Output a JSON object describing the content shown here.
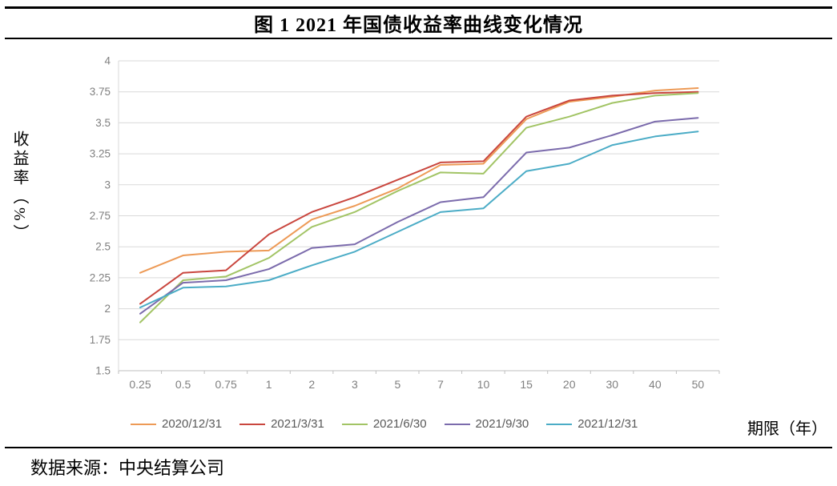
{
  "title": "图 1 2021 年国债收益率曲线变化情况",
  "source_note": "数据来源：中央结算公司",
  "chart_data": {
    "type": "line",
    "title": "图 1 2021 年国债收益率曲线变化情况",
    "xlabel": "期限（年）",
    "ylabel": "收益率（%）",
    "ylim": [
      1.5,
      4
    ],
    "ytick_step": 0.25,
    "yticks": [
      "1.5",
      "1.75",
      "2",
      "2.25",
      "2.5",
      "2.75",
      "3",
      "3.25",
      "3.5",
      "3.75",
      "4"
    ],
    "grid": true,
    "legend_position": "bottom",
    "categories": [
      "0.25",
      "0.5",
      "0.75",
      "1",
      "2",
      "3",
      "5",
      "7",
      "10",
      "15",
      "20",
      "30",
      "40",
      "50"
    ],
    "series": [
      {
        "name": "2020/12/31",
        "color": "#ED9A56",
        "values": [
          2.29,
          2.43,
          2.46,
          2.47,
          2.72,
          2.83,
          2.97,
          3.16,
          3.17,
          3.53,
          3.67,
          3.71,
          3.76,
          3.78
        ]
      },
      {
        "name": "2021/3/31",
        "color": "#C9463E",
        "values": [
          2.04,
          2.29,
          2.31,
          2.6,
          2.78,
          2.9,
          3.04,
          3.18,
          3.19,
          3.55,
          3.68,
          3.72,
          3.74,
          3.75
        ]
      },
      {
        "name": "2021/6/30",
        "color": "#A2C465",
        "values": [
          1.89,
          2.23,
          2.26,
          2.41,
          2.66,
          2.78,
          2.95,
          3.1,
          3.09,
          3.46,
          3.55,
          3.66,
          3.72,
          3.74
        ]
      },
      {
        "name": "2021/9/30",
        "color": "#7B6BAC",
        "values": [
          1.96,
          2.21,
          2.23,
          2.32,
          2.49,
          2.52,
          2.7,
          2.86,
          2.9,
          3.26,
          3.3,
          3.4,
          3.51,
          3.54
        ]
      },
      {
        "name": "2021/12/31",
        "color": "#4BACC6",
        "values": [
          2.01,
          2.17,
          2.18,
          2.23,
          2.35,
          2.46,
          2.62,
          2.78,
          2.81,
          3.11,
          3.17,
          3.32,
          3.39,
          3.43
        ]
      }
    ],
    "axis_colors": {
      "grid": "#D9D9D9",
      "axis": "#BFBFBF",
      "tick_label": "#7F7F7F"
    }
  }
}
